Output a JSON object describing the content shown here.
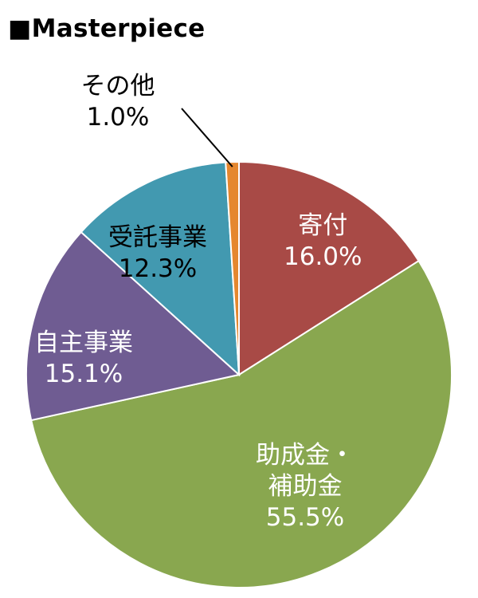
{
  "chart_data": {
    "type": "pie",
    "title": "■Masterpiece",
    "start_angle_deg": 0,
    "direction": "clockwise",
    "slices": [
      {
        "label": "寄付",
        "value": 16.0,
        "value_label": "16.0%",
        "color": "#A84A46",
        "label_color": "#ffffff"
      },
      {
        "label": "助成金・補助金",
        "label_lines": [
          "助成金・",
          "補助金"
        ],
        "value": 55.5,
        "value_label": "55.5%",
        "color": "#89A74F",
        "label_color": "#ffffff"
      },
      {
        "label": "自主事業",
        "value": 15.1,
        "value_label": "15.1%",
        "color": "#6F5C92",
        "label_color": "#ffffff"
      },
      {
        "label": "受託事業",
        "value": 12.3,
        "value_label": "12.3%",
        "color": "#4299B0",
        "label_color": "#000000"
      },
      {
        "label": "その他",
        "value": 1.0,
        "value_label": "1.0%",
        "color": "#E5872F",
        "label_color": "#000000"
      }
    ]
  }
}
